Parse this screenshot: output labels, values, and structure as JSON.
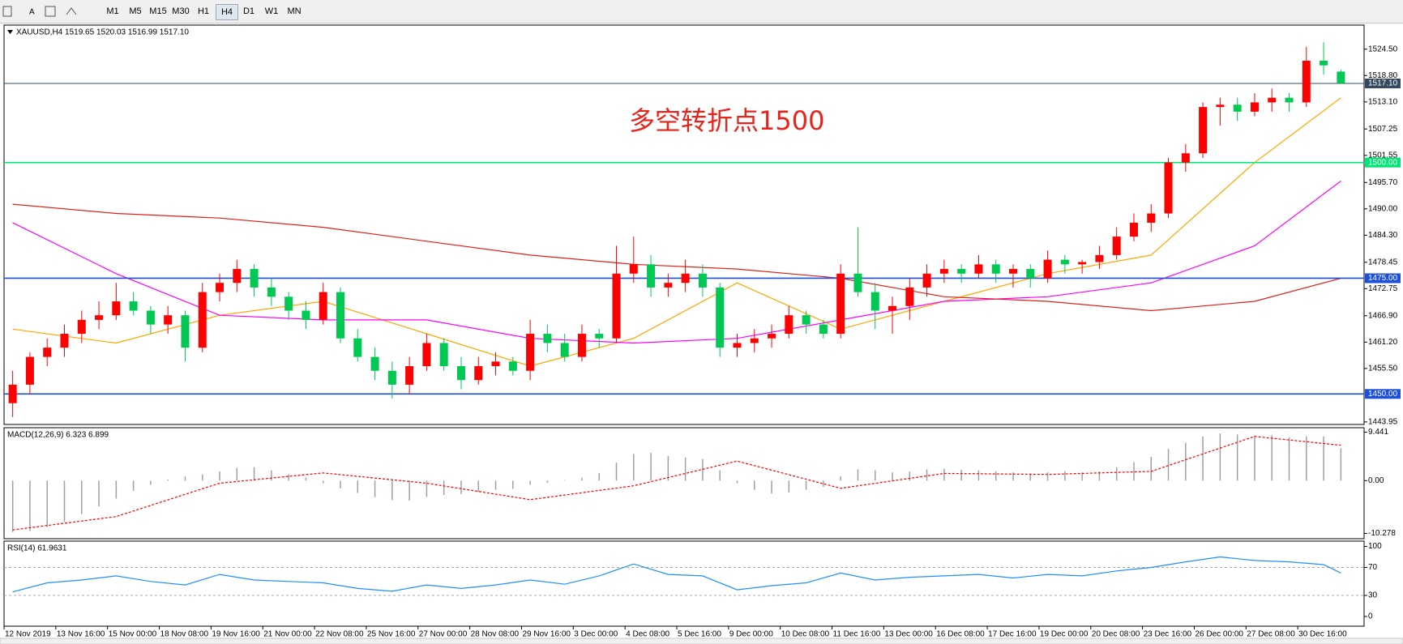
{
  "toolbar": {
    "timeframes": [
      "M1",
      "M5",
      "M15",
      "M30",
      "H1",
      "H4",
      "D1",
      "W1",
      "MN"
    ]
  },
  "chart_data": [
    {
      "type": "candlestick",
      "title": "XAUUSD,H4 1519.65 1520.03 1516.99 1517.10",
      "annotation": "多空转折点1500",
      "categories": [
        "12 Nov 2019",
        null,
        null,
        "13 Nov 16:00",
        null,
        null,
        "15 Nov 00:00",
        null,
        null,
        "18 Nov 08:00",
        null,
        null,
        "19 Nov 16:00",
        null,
        null,
        "21 Nov 00:00",
        null,
        null,
        "22 Nov 08:00",
        null,
        null,
        "25 Nov 16:00",
        null,
        null,
        "27 Nov 00:00",
        null,
        null,
        "28 Nov 08:00",
        null,
        null,
        "29 Nov 16:00",
        null,
        null,
        "3 Dec 00:00",
        null,
        null,
        "4 Dec 08:00",
        null,
        null,
        "5 Dec 16:00",
        null,
        null,
        "9 Dec 00:00",
        null,
        null,
        "10 Dec 08:00",
        null,
        null,
        "11 Dec 16:00",
        null,
        null,
        "13 Dec 00:00",
        null,
        null,
        "16 Dec 08:00",
        null,
        null,
        "17 Dec 16:00",
        null,
        null,
        "19 Dec 00:00",
        null,
        null,
        "20 Dec 08:00",
        null,
        null,
        "23 Dec 16:00",
        null,
        null,
        "26 Dec 00:00",
        null,
        null,
        "27 Dec 08:00",
        null,
        null,
        "30 Dec 16:00",
        null,
        null
      ],
      "ohlc": [
        [
          1448,
          1455,
          1445,
          1452
        ],
        [
          1452,
          1459,
          1450,
          1458
        ],
        [
          1458,
          1462,
          1456,
          1460
        ],
        [
          1460,
          1465,
          1458,
          1463
        ],
        [
          1463,
          1468,
          1461,
          1466
        ],
        [
          1466,
          1470,
          1464,
          1467
        ],
        [
          1467,
          1474,
          1466,
          1470
        ],
        [
          1470,
          1472,
          1467,
          1468
        ],
        [
          1468,
          1469,
          1463,
          1465
        ],
        [
          1465,
          1469,
          1463,
          1467
        ],
        [
          1467,
          1468,
          1457,
          1460
        ],
        [
          1460,
          1474,
          1459,
          1472
        ],
        [
          1472,
          1476,
          1470,
          1474
        ],
        [
          1474,
          1479,
          1472,
          1477
        ],
        [
          1477,
          1478,
          1471,
          1473
        ],
        [
          1473,
          1475,
          1469,
          1471
        ],
        [
          1471,
          1472,
          1466,
          1468
        ],
        [
          1468,
          1470,
          1464,
          1466
        ],
        [
          1466,
          1474,
          1465,
          1472
        ],
        [
          1472,
          1473,
          1461,
          1462
        ],
        [
          1462,
          1464,
          1457,
          1458
        ],
        [
          1458,
          1460,
          1453,
          1455
        ],
        [
          1455,
          1457,
          1449,
          1452
        ],
        [
          1452,
          1458,
          1450,
          1456
        ],
        [
          1456,
          1463,
          1455,
          1461
        ],
        [
          1461,
          1462,
          1455,
          1456
        ],
        [
          1456,
          1458,
          1451,
          1453
        ],
        [
          1453,
          1458,
          1452,
          1456
        ],
        [
          1456,
          1459,
          1454,
          1457
        ],
        [
          1457,
          1458,
          1454,
          1455
        ],
        [
          1455,
          1466,
          1453,
          1463
        ],
        [
          1463,
          1465,
          1459,
          1461
        ],
        [
          1461,
          1463,
          1457,
          1458
        ],
        [
          1458,
          1465,
          1457,
          1463
        ],
        [
          1463,
          1464,
          1460,
          1462
        ],
        [
          1462,
          1482,
          1461,
          1476
        ],
        [
          1476,
          1484,
          1474,
          1478
        ],
        [
          1478,
          1480,
          1471,
          1473
        ],
        [
          1473,
          1476,
          1471,
          1474
        ],
        [
          1474,
          1479,
          1472,
          1476
        ],
        [
          1476,
          1478,
          1471,
          1473
        ],
        [
          1473,
          1474,
          1458,
          1460
        ],
        [
          1460,
          1463,
          1458,
          1461
        ],
        [
          1461,
          1464,
          1459,
          1462
        ],
        [
          1462,
          1465,
          1460,
          1463
        ],
        [
          1463,
          1469,
          1462,
          1467
        ],
        [
          1467,
          1468,
          1463,
          1465
        ],
        [
          1465,
          1466,
          1462,
          1463
        ],
        [
          1463,
          1478,
          1462,
          1476
        ],
        [
          1476,
          1486,
          1471,
          1472
        ],
        [
          1472,
          1474,
          1464,
          1468
        ],
        [
          1468,
          1471,
          1463,
          1469
        ],
        [
          1469,
          1475,
          1466,
          1473
        ],
        [
          1473,
          1478,
          1471,
          1476
        ],
        [
          1476,
          1479,
          1474,
          1477
        ],
        [
          1477,
          1478,
          1474,
          1476
        ],
        [
          1476,
          1480,
          1475,
          1478
        ],
        [
          1478,
          1479,
          1474,
          1476
        ],
        [
          1476,
          1478,
          1473,
          1477
        ],
        [
          1477,
          1478,
          1473,
          1475
        ],
        [
          1475,
          1481,
          1474,
          1479
        ],
        [
          1479,
          1480,
          1476,
          1478
        ],
        [
          1478,
          1479,
          1476,
          1478.5
        ],
        [
          1478.5,
          1482,
          1477,
          1480
        ],
        [
          1480,
          1486,
          1479,
          1484
        ],
        [
          1484,
          1489,
          1483,
          1487
        ],
        [
          1487,
          1491,
          1485,
          1489
        ],
        [
          1489,
          1501,
          1488,
          1500
        ],
        [
          1500,
          1504,
          1498,
          1502
        ],
        [
          1502,
          1513,
          1501,
          1512
        ],
        [
          1512,
          1514,
          1508,
          1512.5
        ],
        [
          1512.5,
          1514,
          1509,
          1511
        ],
        [
          1511,
          1515,
          1510,
          1513
        ],
        [
          1513,
          1516,
          1511,
          1514
        ],
        [
          1514,
          1515,
          1511,
          1513
        ],
        [
          1513,
          1525,
          1512,
          1522
        ],
        [
          1522,
          1526,
          1519,
          1521
        ],
        [
          1519.65,
          1520.03,
          1516.99,
          1517.1
        ]
      ],
      "up_color": "#ff0000",
      "down_color": "#00c853",
      "lines": [
        {
          "color": "#ffa500",
          "x": [
            0,
            6,
            12,
            18,
            24,
            30,
            36,
            42,
            48,
            54,
            60,
            66,
            72,
            77
          ],
          "values": [
            1464,
            1461,
            1467,
            1470,
            1463,
            1456,
            1462,
            1474,
            1464,
            1470,
            1476,
            1480,
            1500,
            1514
          ]
        },
        {
          "color": "#ff00ff",
          "x": [
            0,
            6,
            12,
            18,
            24,
            30,
            36,
            42,
            48,
            54,
            60,
            66,
            72,
            77
          ],
          "values": [
            1487,
            1476,
            1467,
            1466,
            1466,
            1462,
            1461,
            1462,
            1466,
            1470,
            1471,
            1474,
            1482,
            1496
          ]
        },
        {
          "color": "#e0201a",
          "x": [
            0,
            6,
            12,
            18,
            24,
            30,
            36,
            42,
            48,
            54,
            60,
            66,
            72,
            77
          ],
          "values": [
            1491,
            1489,
            1488,
            1486,
            1483,
            1480,
            1478,
            1477,
            1475,
            1471,
            1470,
            1468,
            1470,
            1475
          ]
        }
      ],
      "hlines": [
        {
          "value": 1517.1,
          "label": "1517.10",
          "color": "#34495e"
        },
        {
          "value": 1500,
          "label": "1500.00",
          "color": "#00e676"
        },
        {
          "value": 1475,
          "label": "1475.00",
          "color": "#1e4fd8"
        },
        {
          "value": 1450,
          "label": "1450.00",
          "color": "#1e4fd8"
        }
      ],
      "ylim": [
        1443.4,
        1529.7
      ],
      "yticks": [
        {
          "value": 1524.5,
          "label": "1524.50"
        },
        {
          "value": 1518.8,
          "label": "1518.80"
        },
        {
          "value": 1513.1,
          "label": "1513.10"
        },
        1507.25,
        1501.55,
        {
          "value": 1495.7,
          "label": "1495.70"
        },
        {
          "value": 1490,
          "label": "1490.00"
        },
        {
          "value": 1484.3,
          "label": "1484.30"
        },
        1478.45,
        1472.75,
        {
          "value": 1466.9,
          "label": "1466.90"
        },
        {
          "value": 1461.2,
          "label": "1461.20"
        },
        {
          "value": 1455.5,
          "label": "1455.50"
        },
        1443.95
      ]
    },
    {
      "type": "macd",
      "title": "MACD(12,26,9) 6.323 6.899",
      "values": [
        -10,
        -9.8,
        -9,
        -8,
        -6.5,
        -5,
        -3.5,
        -2,
        -0.8,
        0.2,
        0.8,
        1.2,
        1.8,
        2.5,
        2.6,
        2,
        1.2,
        0.6,
        -0.5,
        -1.5,
        -2.4,
        -3.2,
        -3.8,
        -3.9,
        -3.2,
        -2.8,
        -2.6,
        -2.2,
        -1.8,
        -1.6,
        -0.8,
        -0.4,
        0.1,
        0.6,
        1.5,
        3.5,
        5.2,
        5.4,
        4.8,
        4.5,
        4.2,
        2,
        -0.5,
        -1.8,
        -2.5,
        -2.3,
        -1.8,
        -1.2,
        0.8,
        2.2,
        2,
        1.6,
        1.8,
        2.2,
        2.3,
        2.1,
        2,
        1.8,
        1.6,
        1.4,
        1.6,
        1.8,
        1.6,
        1.8,
        2.6,
        3.6,
        4.6,
        6.2,
        7.4,
        8.6,
        9.2,
        9,
        8.8,
        8.8,
        8.4,
        8.6,
        8.6,
        6.323
      ],
      "color": "#a0a0a0",
      "signal": {
        "color": "#ff0000",
        "x": [
          0,
          6,
          12,
          18,
          24,
          30,
          36,
          42,
          48,
          54,
          60,
          66,
          72,
          77
        ],
        "values": [
          -9.6,
          -7,
          -0.5,
          1.5,
          -0.5,
          -3.7,
          -1,
          3.8,
          -1.5,
          1.4,
          1.2,
          1.8,
          8.6,
          6.899
        ]
      },
      "ylim": [
        -11.3,
        10.3
      ],
      "yticks": [
        9.441,
        {
          "value": 0,
          "label": "0.00"
        },
        -10.278
      ]
    },
    {
      "type": "line",
      "title": "RSI(14) 61.9631",
      "x": [
        0,
        2,
        4,
        6,
        8,
        10,
        12,
        14,
        16,
        18,
        20,
        22,
        24,
        26,
        28,
        30,
        32,
        34,
        36,
        38,
        40,
        42,
        44,
        46,
        48,
        50,
        52,
        54,
        56,
        58,
        60,
        62,
        64,
        66,
        68,
        70,
        72,
        74,
        76,
        77
      ],
      "values": [
        35,
        48,
        52,
        58,
        50,
        45,
        60,
        52,
        50,
        48,
        40,
        36,
        45,
        40,
        45,
        52,
        46,
        58,
        75,
        60,
        58,
        38,
        44,
        48,
        62,
        52,
        56,
        58,
        60,
        55,
        60,
        58,
        65,
        70,
        78,
        85,
        80,
        78,
        74,
        61.9631
      ],
      "color": "#1e90ff",
      "levels": [
        70,
        30
      ],
      "ylim": [
        -13.9,
        107.6
      ],
      "yticks": [
        100,
        70,
        30,
        0
      ]
    }
  ]
}
